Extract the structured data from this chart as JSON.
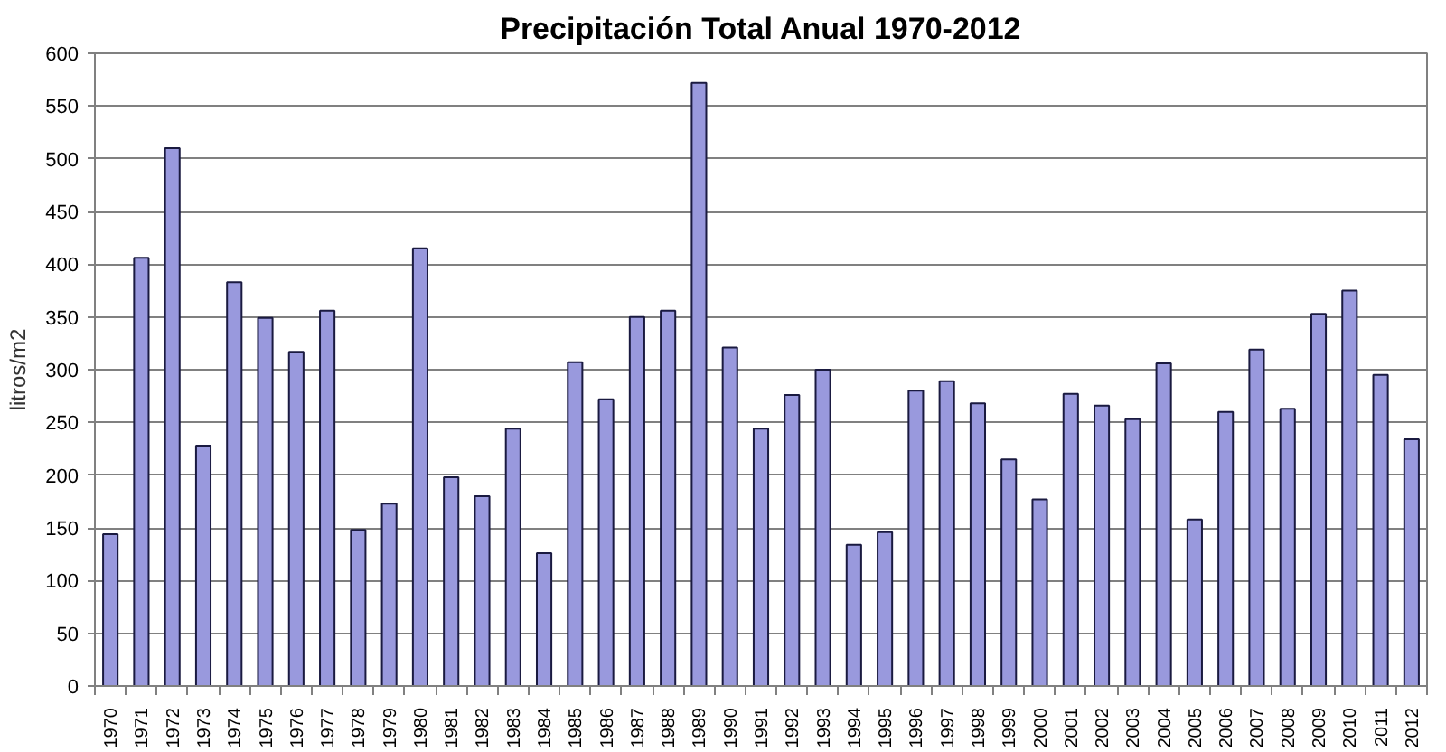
{
  "chart_data": {
    "type": "bar",
    "title": "Precipitación Total Anual 1970-2012",
    "ylabel": "litros/m2",
    "categories": [
      "1970",
      "1971",
      "1972",
      "1973",
      "1974",
      "1975",
      "1976",
      "1977",
      "1978",
      "1979",
      "1980",
      "1981",
      "1982",
      "1983",
      "1984",
      "1985",
      "1986",
      "1987",
      "1988",
      "1989",
      "1990",
      "1991",
      "1992",
      "1993",
      "1994",
      "1995",
      "1996",
      "1997",
      "1998",
      "1999",
      "2000",
      "2001",
      "2002",
      "2003",
      "2004",
      "2005",
      "2006",
      "2007",
      "2008",
      "2009",
      "2010",
      "2011",
      "2012"
    ],
    "values": [
      144,
      406,
      510,
      228,
      383,
      349,
      317,
      356,
      148,
      173,
      415,
      198,
      180,
      244,
      126,
      307,
      272,
      350,
      356,
      572,
      321,
      244,
      276,
      300,
      134,
      146,
      280,
      289,
      268,
      215,
      177,
      277,
      266,
      253,
      306,
      158,
      260,
      319,
      263,
      353,
      375,
      295,
      234
    ],
    "color": "#9999dd",
    "ylim": [
      0,
      600
    ],
    "yticks": [
      0,
      50,
      100,
      150,
      200,
      250,
      300,
      350,
      400,
      450,
      500,
      550,
      600
    ],
    "grid": "y"
  }
}
